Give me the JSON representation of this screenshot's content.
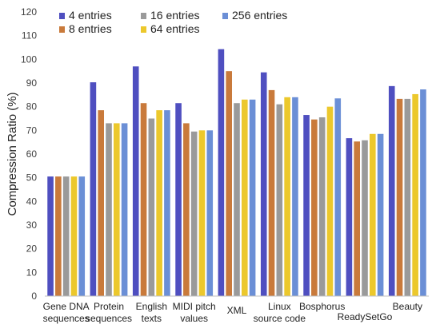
{
  "chart_data": {
    "type": "bar",
    "ylabel": "Compression Ratio (%)",
    "ylim": [
      0,
      120
    ],
    "yticks": [
      0,
      10,
      20,
      30,
      40,
      50,
      60,
      70,
      80,
      90,
      100,
      110,
      120
    ],
    "grid": false,
    "legend_position": "top-left",
    "categories": [
      [
        "Gene DNA",
        "sequences"
      ],
      [
        "Protein",
        "sequences"
      ],
      [
        "English",
        "texts"
      ],
      [
        "MIDI pitch",
        "values"
      ],
      [
        "XML"
      ],
      [
        "Linux",
        "source code"
      ],
      [
        "Bosphorus"
      ],
      [
        "ReadySetGo"
      ],
      [
        "Beauty"
      ]
    ],
    "series": [
      {
        "name": "4 entries",
        "color": "#4f4fc0",
        "values": [
          50.5,
          90.3,
          97.0,
          81.5,
          104.3,
          94.5,
          76.5,
          66.7,
          88.7
        ]
      },
      {
        "name": "8 entries",
        "color": "#c97a3b",
        "values": [
          50.5,
          78.5,
          81.5,
          73.0,
          95.0,
          87.0,
          74.6,
          65.3,
          83.3
        ]
      },
      {
        "name": "16 entries",
        "color": "#9a9a9a",
        "values": [
          50.5,
          73.0,
          75.0,
          69.5,
          81.5,
          81.0,
          75.5,
          65.8,
          83.3
        ]
      },
      {
        "name": "64 entries",
        "color": "#ecc82c",
        "values": [
          50.5,
          73.0,
          78.5,
          70.0,
          83.0,
          84.0,
          80.0,
          68.5,
          85.3
        ]
      },
      {
        "name": "256 entries",
        "color": "#6b8fd6",
        "values": [
          50.5,
          73.0,
          78.5,
          70.0,
          83.0,
          84.0,
          83.5,
          68.5,
          87.3
        ]
      }
    ]
  }
}
